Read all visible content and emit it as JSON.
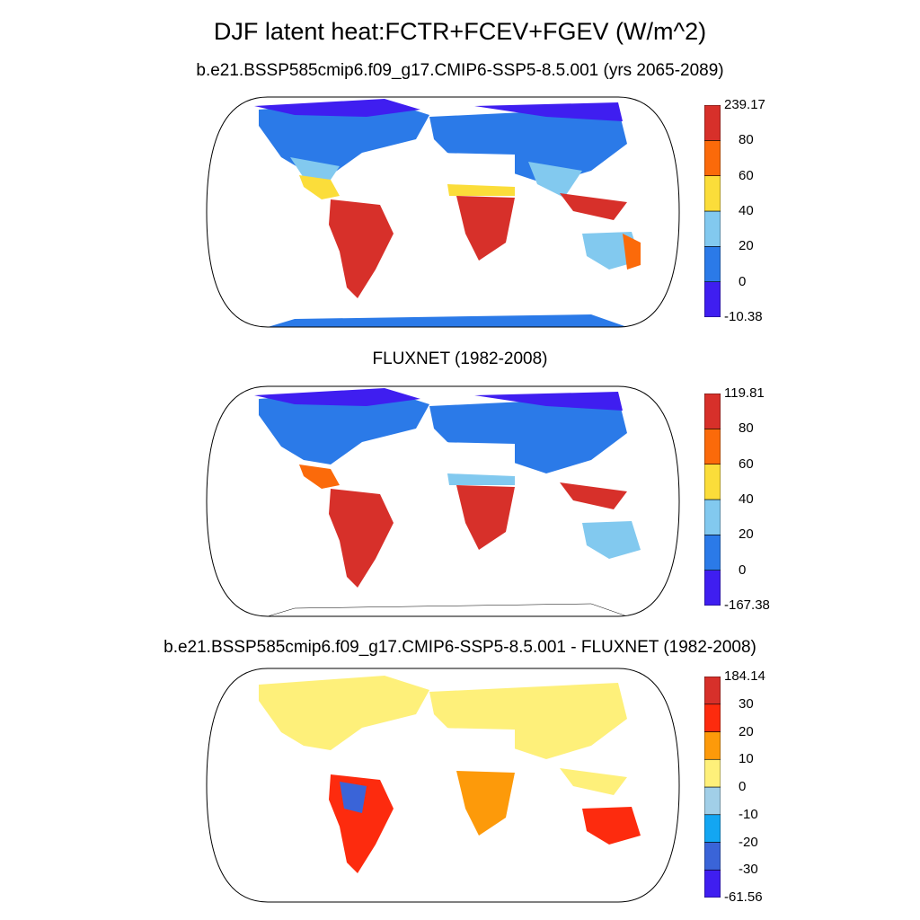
{
  "title": "DJF latent heat:FCTR+FCEV+FGEV (W/m^2)",
  "panels": [
    {
      "id": "model",
      "subtitle": "b.e21.BSSP585cmip6.f09_g17.CMIP6-SSP5-8.5.001 (yrs 2065-2089)",
      "colorbar": {
        "colors": [
          "#3f1ef0",
          "#2b7ae8",
          "#82c9ef",
          "#fbdd3a",
          "#fb6a0a",
          "#d7302a"
        ],
        "labels": [
          "-10.38",
          "0",
          "20",
          "40",
          "60",
          "80",
          "239.17"
        ]
      }
    },
    {
      "id": "obs",
      "subtitle": "FLUXNET (1982-2008)",
      "colorbar": {
        "colors": [
          "#3f1ef0",
          "#2b7ae8",
          "#82c9ef",
          "#fbdd3a",
          "#fb6a0a",
          "#d7302a"
        ],
        "labels": [
          "-167.38",
          "0",
          "20",
          "40",
          "60",
          "80",
          "119.81"
        ]
      }
    },
    {
      "id": "diff",
      "subtitle": "b.e21.BSSP585cmip6.f09_g17.CMIP6-SSP5-8.5.001 - FLUXNET (1982-2008)",
      "colorbar": {
        "colors": [
          "#3f1ef0",
          "#3a64d8",
          "#13a6f2",
          "#a1cfe8",
          "#fef07a",
          "#fd9a0a",
          "#fd2b0e",
          "#d7302a"
        ],
        "labels": [
          "-61.56",
          "-30",
          "-20",
          "-10",
          "0",
          "10",
          "20",
          "30",
          "184.14"
        ]
      }
    }
  ]
}
